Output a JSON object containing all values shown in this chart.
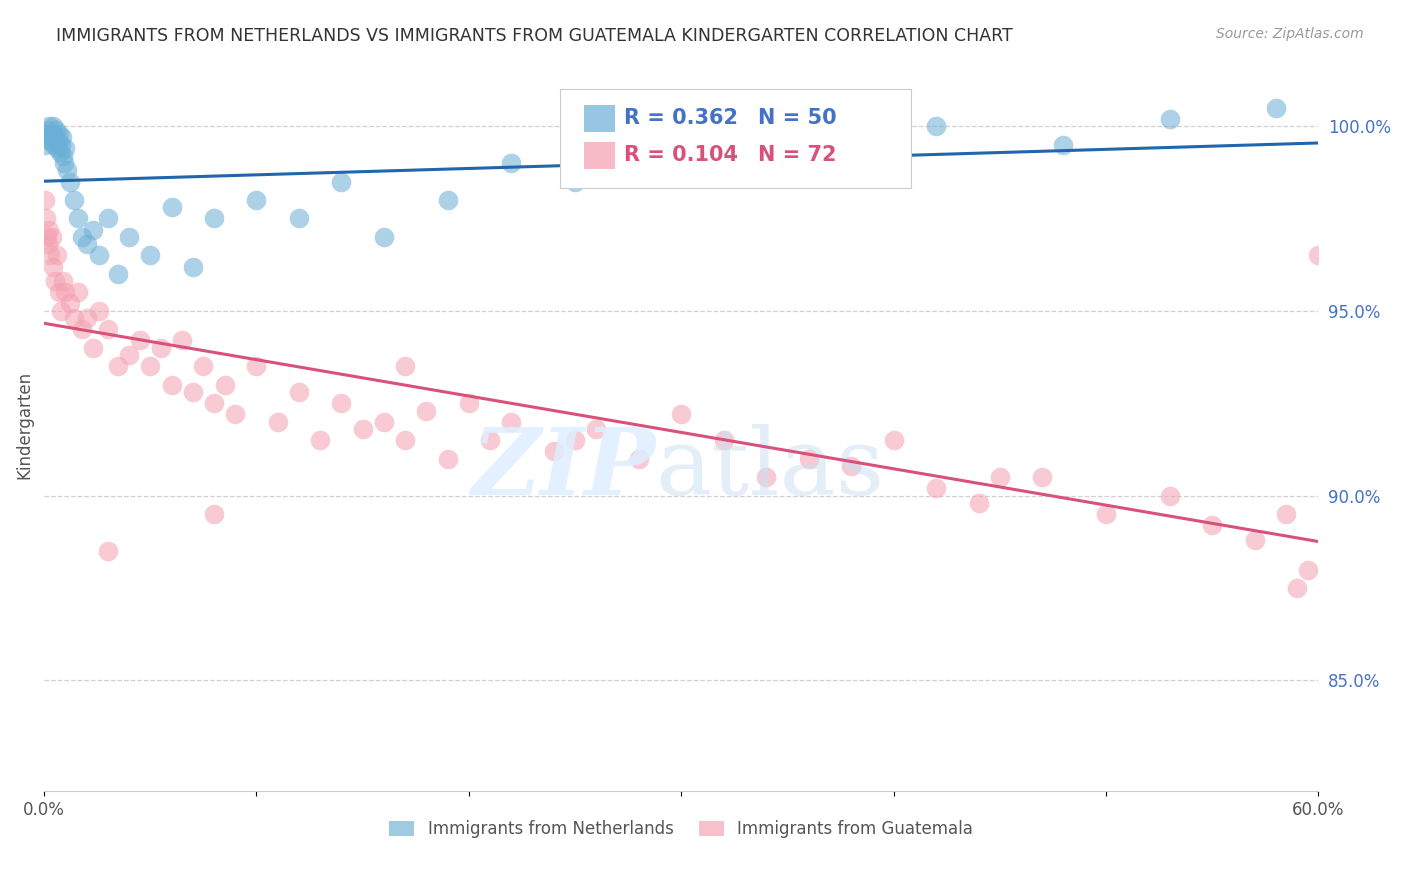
{
  "title": "IMMIGRANTS FROM NETHERLANDS VS IMMIGRANTS FROM GUATEMALA KINDERGARTEN CORRELATION CHART",
  "source": "Source: ZipAtlas.com",
  "ylabel": "Kindergarten",
  "xlim": [
    0,
    60
  ],
  "ylim": [
    82,
    101.8
  ],
  "netherlands_R": 0.362,
  "netherlands_N": 50,
  "guatemala_R": 0.104,
  "guatemala_N": 72,
  "background_color": "#ffffff",
  "nl_color": "#6baed6",
  "nl_line_color": "#2166ac",
  "gt_color": "#f4a0b0",
  "gt_line_color": "#d9517a",
  "right_axis_color": "#4472c4",
  "title_color": "#333333",
  "netherlands_x": [
    0.05,
    0.1,
    0.15,
    0.2,
    0.25,
    0.3,
    0.35,
    0.4,
    0.45,
    0.5,
    0.55,
    0.6,
    0.65,
    0.7,
    0.75,
    0.8,
    0.85,
    0.9,
    0.95,
    1.0,
    1.1,
    1.2,
    1.4,
    1.6,
    1.8,
    2.0,
    2.3,
    2.6,
    3.0,
    3.5,
    4.0,
    5.0,
    6.0,
    7.0,
    8.0,
    10.0,
    12.0,
    14.0,
    16.0,
    19.0,
    22.0,
    25.0,
    28.0,
    31.0,
    35.0,
    38.0,
    42.0,
    48.0,
    53.0,
    58.0
  ],
  "netherlands_y": [
    99.5,
    99.7,
    99.8,
    99.9,
    100.0,
    99.6,
    99.8,
    100.0,
    99.5,
    99.7,
    99.9,
    99.4,
    99.6,
    99.8,
    99.3,
    99.5,
    99.7,
    99.2,
    99.0,
    99.4,
    98.8,
    98.5,
    98.0,
    97.5,
    97.0,
    96.8,
    97.2,
    96.5,
    97.5,
    96.0,
    97.0,
    96.5,
    97.8,
    96.2,
    97.5,
    98.0,
    97.5,
    98.5,
    97.0,
    98.0,
    99.0,
    98.5,
    99.2,
    98.8,
    99.5,
    99.0,
    100.0,
    99.5,
    100.2,
    100.5
  ],
  "guatemala_x": [
    0.05,
    0.1,
    0.15,
    0.2,
    0.25,
    0.3,
    0.35,
    0.4,
    0.5,
    0.6,
    0.7,
    0.8,
    0.9,
    1.0,
    1.2,
    1.4,
    1.6,
    1.8,
    2.0,
    2.3,
    2.6,
    3.0,
    3.5,
    4.0,
    4.5,
    5.0,
    5.5,
    6.0,
    6.5,
    7.0,
    7.5,
    8.0,
    8.5,
    9.0,
    10.0,
    11.0,
    12.0,
    13.0,
    14.0,
    15.0,
    16.0,
    17.0,
    18.0,
    19.0,
    20.0,
    21.0,
    22.0,
    24.0,
    26.0,
    28.0,
    30.0,
    32.0,
    34.0,
    36.0,
    38.0,
    40.0,
    42.0,
    44.0,
    47.0,
    50.0,
    53.0,
    55.0,
    57.0,
    58.5,
    59.0,
    59.5,
    60.0,
    45.0,
    25.0,
    17.0,
    8.0,
    3.0
  ],
  "guatemala_y": [
    98.0,
    97.5,
    97.0,
    96.8,
    97.2,
    96.5,
    97.0,
    96.2,
    95.8,
    96.5,
    95.5,
    95.0,
    95.8,
    95.5,
    95.2,
    94.8,
    95.5,
    94.5,
    94.8,
    94.0,
    95.0,
    94.5,
    93.5,
    93.8,
    94.2,
    93.5,
    94.0,
    93.0,
    94.2,
    92.8,
    93.5,
    92.5,
    93.0,
    92.2,
    93.5,
    92.0,
    92.8,
    91.5,
    92.5,
    91.8,
    92.0,
    91.5,
    92.3,
    91.0,
    92.5,
    91.5,
    92.0,
    91.2,
    91.8,
    91.0,
    92.2,
    91.5,
    90.5,
    91.0,
    90.8,
    91.5,
    90.2,
    89.8,
    90.5,
    89.5,
    90.0,
    89.2,
    88.8,
    89.5,
    87.5,
    88.0,
    96.5,
    90.5,
    91.5,
    93.5,
    89.5,
    88.5
  ]
}
